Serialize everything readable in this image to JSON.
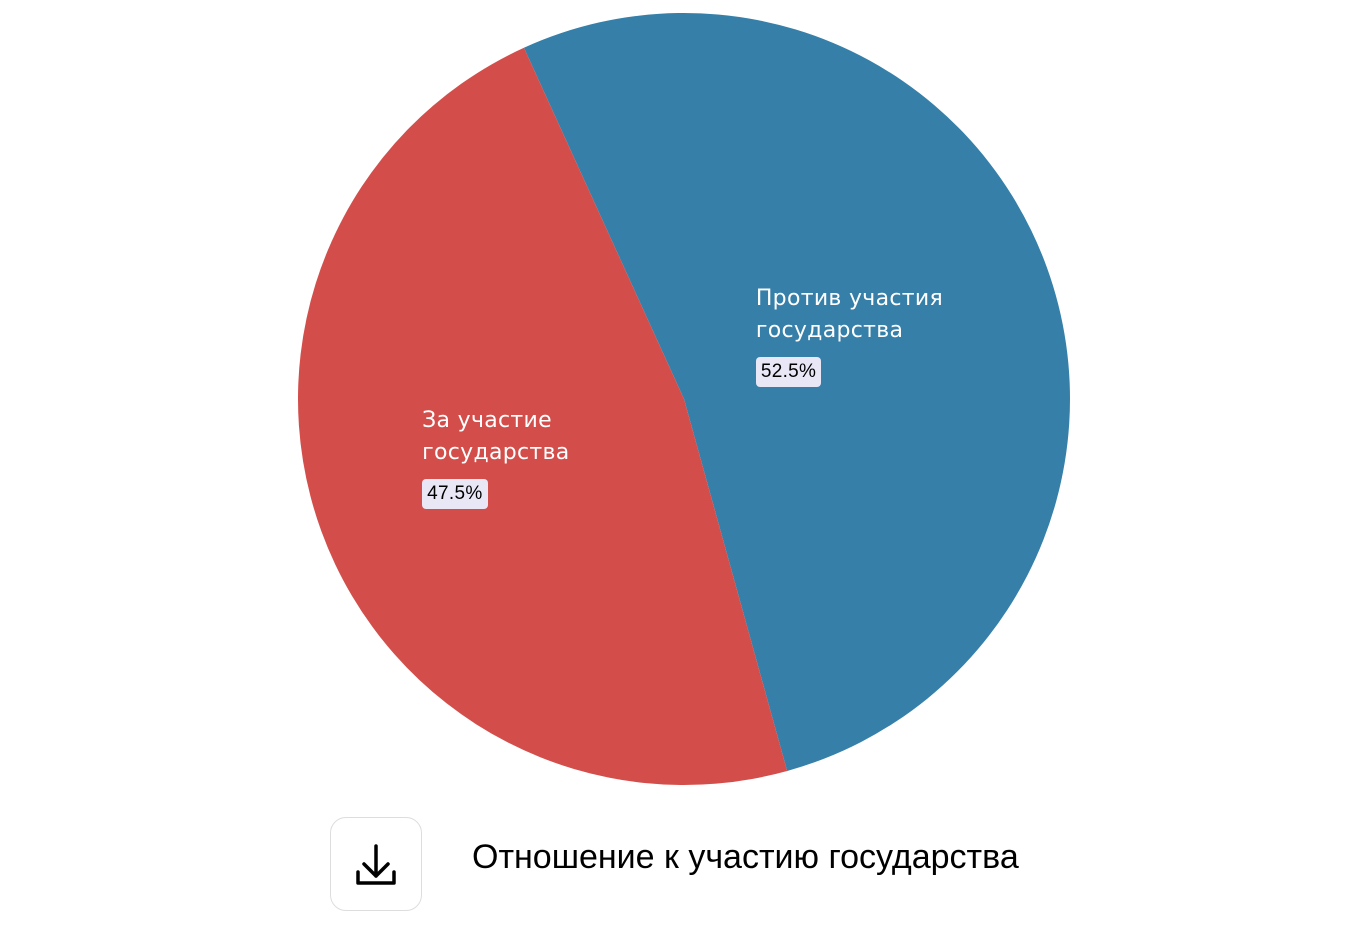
{
  "chart_data": {
    "type": "pie",
    "title": "Отношение к участию государства",
    "categories": [
      "Против участия государства",
      "За участие государства"
    ],
    "values": [
      52.5,
      47.5
    ],
    "value_labels": [
      "52.5%",
      "47.5%"
    ],
    "colors": [
      "#357fa9",
      "#d34e4a"
    ]
  }
}
